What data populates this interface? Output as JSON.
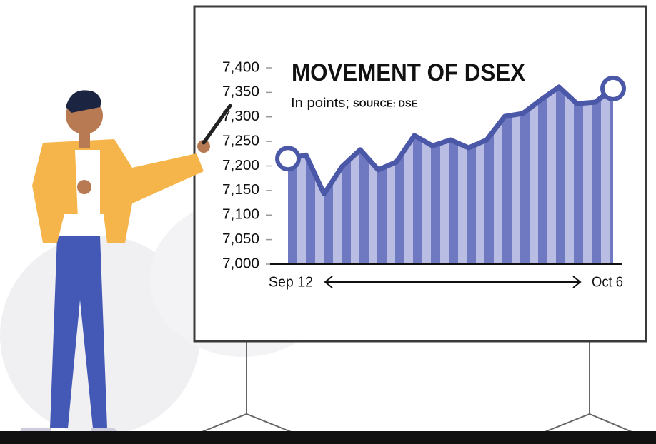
{
  "chart_data": {
    "type": "area",
    "title": "MOVEMENT OF DSEX",
    "subtitle": "In points;",
    "source": "SOURCE: DSE",
    "categories": [
      "Sep 12",
      null,
      null,
      null,
      null,
      null,
      null,
      null,
      null,
      null,
      null,
      null,
      null,
      null,
      null,
      null,
      null,
      null,
      "Oct 6"
    ],
    "values": [
      7215,
      7222,
      7143,
      7199,
      7233,
      7192,
      7208,
      7262,
      7241,
      7253,
      7237,
      7253,
      7301,
      7307,
      7335,
      7361,
      7327,
      7330,
      7358
    ],
    "color": "#4b58a8",
    "stripe_colors": [
      "#6f79c2",
      "#b9bde3"
    ],
    "ylim": [
      7000,
      7400
    ],
    "yticks": [
      {
        "value": 7000,
        "label": "7,000"
      },
      {
        "value": 7050,
        "label": "7,050"
      },
      {
        "value": 7100,
        "label": "7,100"
      },
      {
        "value": 7150,
        "label": "7,150"
      },
      {
        "value": 7200,
        "label": "7,200"
      },
      {
        "value": 7250,
        "label": "7,250"
      },
      {
        "value": 7300,
        "label": "7,300"
      },
      {
        "value": 7350,
        "label": "7,350"
      },
      {
        "value": 7400,
        "label": "7,400"
      }
    ]
  }
}
